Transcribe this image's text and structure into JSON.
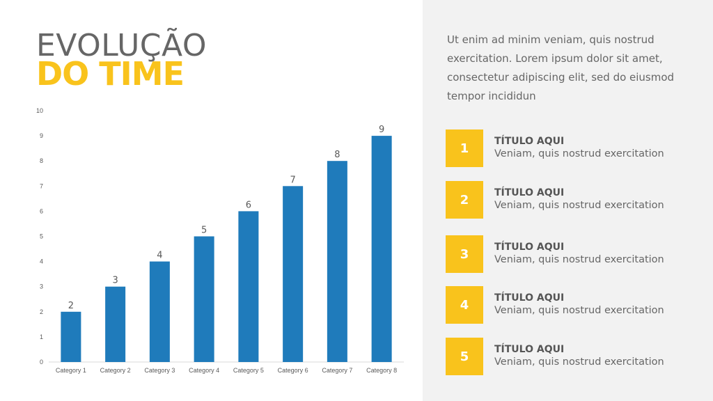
{
  "title": {
    "line1": "EVOLUÇÃO",
    "line2": "DO TIME"
  },
  "intro": "Ut enim ad minim veniam, quis nostrud exercitation. Lorem ipsum dolor sit amet, consectetur adipiscing elit, sed do eiusmod tempor incididun",
  "items": [
    {
      "number": "1",
      "title": "TÍTULO AQUI",
      "description": "Veniam, quis nostrud exercitation"
    },
    {
      "number": "2",
      "title": "TÍTULO AQUI",
      "description": "Veniam, quis nostrud exercitation"
    },
    {
      "number": "3",
      "title": "TÍTULO AQUI",
      "description": "Veniam, quis nostrud exercitation"
    },
    {
      "number": "4",
      "title": "TÍTULO AQUI",
      "description": "Veniam, quis nostrud exercitation"
    },
    {
      "number": "5",
      "title": "TÍTULO AQUI",
      "description": "Veniam, quis nostrud exercitation"
    }
  ],
  "colors": {
    "bar": "#1f7bbb",
    "accent": "#f9c31c",
    "panel": "#f2f2f2",
    "text": "#666666"
  },
  "chart_data": {
    "type": "bar",
    "categories": [
      "Category 1",
      "Category 2",
      "Category 3",
      "Category 4",
      "Category 5",
      "Category 6",
      "Category 7",
      "Category 8"
    ],
    "values": [
      2,
      3,
      4,
      5,
      6,
      7,
      8,
      9
    ],
    "title": "",
    "xlabel": "",
    "ylabel": "",
    "ylim": [
      0,
      10
    ],
    "yticks": [
      "0",
      "1",
      "2",
      "3",
      "4",
      "5",
      "6",
      "7",
      "8",
      "9",
      "10"
    ],
    "grid": false,
    "data_labels": true
  }
}
